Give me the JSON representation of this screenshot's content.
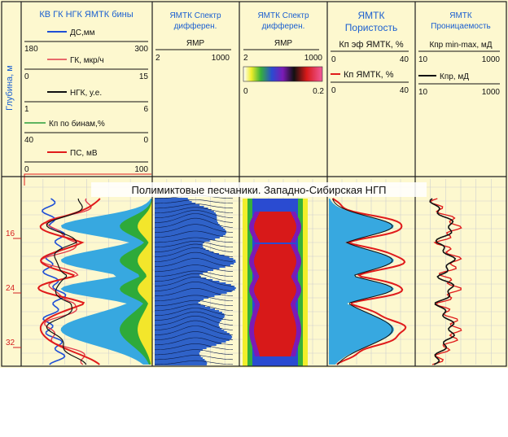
{
  "depth_axis": {
    "label": "Глубина, м",
    "ticks": [
      "16",
      "24",
      "32"
    ]
  },
  "tracks": [
    {
      "title_lines": [
        "КВ ГК НГК ЯМТК бины"
      ]
    },
    {
      "title_lines": [
        "ЯМТК Спектр",
        "дифферен."
      ]
    },
    {
      "title_lines": [
        "ЯМТК Спектр",
        "дифферен."
      ]
    },
    {
      "title_lines": [
        "ЯМТК",
        "Пористость"
      ]
    },
    {
      "title_lines": [
        "ЯМТК",
        "Проницаемость"
      ]
    }
  ],
  "curves_track1": [
    {
      "name": "ДС,мм",
      "min": "180",
      "max": "300",
      "color": "#1f4fd6"
    },
    {
      "name": "ГК, мкр/ч",
      "min": "0",
      "max": "15",
      "color": "#e23a4a"
    },
    {
      "name": "НГК, у.е.",
      "min": "1",
      "max": "6",
      "color": "#111111"
    },
    {
      "name": "Кп по бинам,%",
      "min": "40",
      "max": "0",
      "color": "#2a9d3a"
    },
    {
      "name": "ПС, мВ",
      "min": "0",
      "max": "100",
      "color": "#e01b1b"
    }
  ],
  "track2_scale": {
    "name": "ЯМР",
    "min": "2",
    "max": "1000"
  },
  "track3_scale": {
    "name": "ЯМР",
    "min": "2",
    "max": "1000",
    "colorbar_min": "0",
    "colorbar_max": "0.2"
  },
  "track4_scales": [
    {
      "name": "Кп эф ЯМТК, %",
      "min": "0",
      "max": "40",
      "color": "#111111"
    },
    {
      "name": "Кп ЯМТК, %",
      "min": "0",
      "max": "40",
      "color": "#e01b1b"
    }
  ],
  "track5_scales": [
    {
      "name": "Кпр min-max, мД",
      "min": "10",
      "max": "1000",
      "color": "#111111"
    },
    {
      "name": "Кпр, мД",
      "min": "10",
      "max": "1000",
      "color": "#111111"
    }
  ],
  "caption": "Полимиктовые песчаники. Западно-Сибирская НГП",
  "colors": {
    "title": "#1a5fd0",
    "background": "#fdf8cf",
    "fill_blue": "#37a8e0",
    "curve_red": "#e01b1b"
  }
}
